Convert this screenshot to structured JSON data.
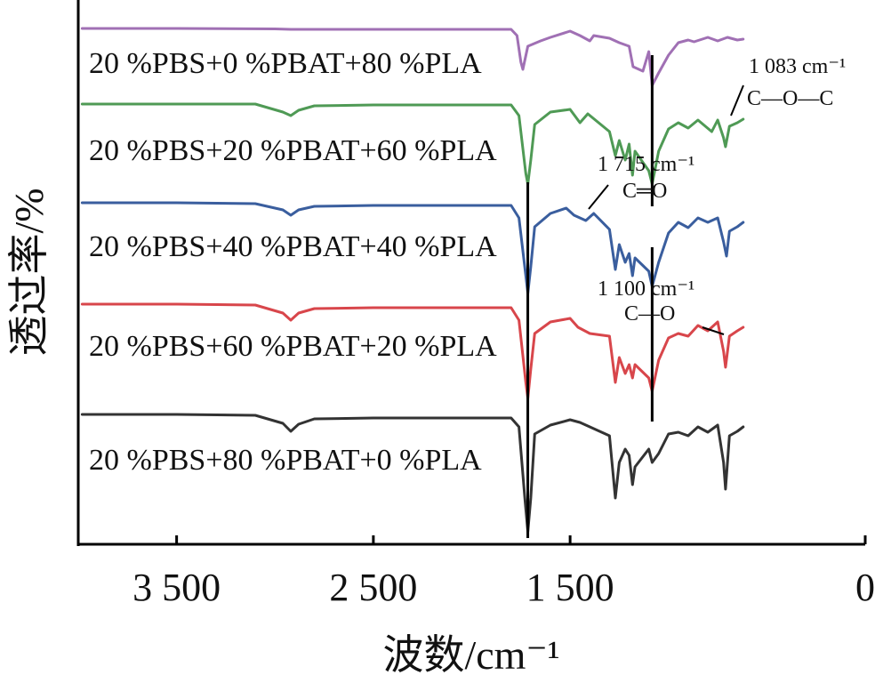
{
  "chart_data": {
    "type": "line",
    "xlabel": "波数/cm⁻¹",
    "ylabel": "透过率/%",
    "x_reversed": true,
    "xlim": [
      4000,
      0
    ],
    "xticks": [
      {
        "value": 3500,
        "label": "3 500"
      },
      {
        "value": 2500,
        "label": "2 500"
      },
      {
        "value": 1500,
        "label": "1 500"
      },
      {
        "value": 0,
        "label": "0"
      }
    ],
    "grid": false,
    "legend": "none",
    "colors": {
      "pla80": "#a070b4",
      "pla60": "#4f9a55",
      "pla40": "#3a5e9e",
      "pla20": "#d8464b",
      "pla0": "#333333",
      "marker": "#000000"
    },
    "series": [
      {
        "name": "20 %PBS+0 %PBAT+80 %PLA",
        "color": "#a070b4",
        "points": [
          [
            3980,
            32
          ],
          [
            3500,
            32
          ],
          [
            3000,
            32.5
          ],
          [
            2920,
            33
          ],
          [
            2500,
            33
          ],
          [
            2000,
            33
          ],
          [
            1800,
            33
          ],
          [
            1770,
            40
          ],
          [
            1750,
            70
          ],
          [
            1740,
            78
          ],
          [
            1715,
            52
          ],
          [
            1650,
            46
          ],
          [
            1600,
            42
          ],
          [
            1500,
            35
          ],
          [
            1450,
            40
          ],
          [
            1400,
            46
          ],
          [
            1380,
            40
          ],
          [
            1300,
            43
          ],
          [
            1250,
            48
          ],
          [
            1200,
            52
          ],
          [
            1180,
            75
          ],
          [
            1130,
            80
          ],
          [
            1100,
            58
          ],
          [
            1083,
            96
          ],
          [
            1050,
            82
          ],
          [
            1000,
            62
          ],
          [
            950,
            48
          ],
          [
            900,
            45
          ],
          [
            870,
            47
          ],
          [
            800,
            42
          ],
          [
            750,
            46
          ],
          [
            700,
            42
          ],
          [
            650,
            45
          ],
          [
            620,
            44
          ]
        ]
      },
      {
        "name": "20 %PBS+20 %PBAT+60 %PLA",
        "color": "#4f9a55",
        "points": [
          [
            3980,
            117
          ],
          [
            3500,
            117
          ],
          [
            3100,
            117
          ],
          [
            2960,
            126
          ],
          [
            2920,
            130
          ],
          [
            2880,
            124
          ],
          [
            2800,
            119
          ],
          [
            2500,
            118
          ],
          [
            2000,
            118
          ],
          [
            1800,
            118
          ],
          [
            1760,
            130
          ],
          [
            1725,
            195
          ],
          [
            1715,
            207
          ],
          [
            1700,
            180
          ],
          [
            1680,
            140
          ],
          [
            1600,
            126
          ],
          [
            1500,
            123
          ],
          [
            1450,
            138
          ],
          [
            1410,
            128
          ],
          [
            1300,
            148
          ],
          [
            1270,
            175
          ],
          [
            1250,
            158
          ],
          [
            1220,
            180
          ],
          [
            1200,
            162
          ],
          [
            1183,
            197
          ],
          [
            1170,
            170
          ],
          [
            1100,
            192
          ],
          [
            1083,
            207
          ],
          [
            1050,
            170
          ],
          [
            1000,
            145
          ],
          [
            950,
            138
          ],
          [
            900,
            144
          ],
          [
            850,
            135
          ],
          [
            780,
            148
          ],
          [
            750,
            135
          ],
          [
            720,
            155
          ],
          [
            710,
            165
          ],
          [
            690,
            142
          ],
          [
            650,
            138
          ],
          [
            620,
            134
          ]
        ]
      },
      {
        "name": "20 %PBS+40 %PBAT+40 %PLA",
        "color": "#3a5e9e",
        "points": [
          [
            3980,
            228
          ],
          [
            3500,
            228
          ],
          [
            3100,
            229
          ],
          [
            2960,
            236
          ],
          [
            2920,
            242
          ],
          [
            2880,
            236
          ],
          [
            2800,
            232
          ],
          [
            2500,
            231
          ],
          [
            2000,
            231
          ],
          [
            1800,
            231
          ],
          [
            1760,
            245
          ],
          [
            1725,
            310
          ],
          [
            1715,
            330
          ],
          [
            1700,
            300
          ],
          [
            1680,
            255
          ],
          [
            1600,
            240
          ],
          [
            1520,
            234
          ],
          [
            1480,
            242
          ],
          [
            1420,
            248
          ],
          [
            1380,
            240
          ],
          [
            1300,
            258
          ],
          [
            1270,
            303
          ],
          [
            1250,
            275
          ],
          [
            1220,
            295
          ],
          [
            1200,
            285
          ],
          [
            1183,
            310
          ],
          [
            1170,
            290
          ],
          [
            1100,
            305
          ],
          [
            1083,
            322
          ],
          [
            1050,
            295
          ],
          [
            1000,
            262
          ],
          [
            950,
            250
          ],
          [
            900,
            256
          ],
          [
            850,
            245
          ],
          [
            800,
            250
          ],
          [
            750,
            245
          ],
          [
            720,
            272
          ],
          [
            705,
            288
          ],
          [
            690,
            260
          ],
          [
            650,
            255
          ],
          [
            620,
            250
          ]
        ]
      },
      {
        "name": "20 %PBS+60 %PBAT+20 %PLA",
        "color": "#d8464b",
        "points": [
          [
            3980,
            342
          ],
          [
            3500,
            342
          ],
          [
            3100,
            343
          ],
          [
            2960,
            352
          ],
          [
            2920,
            360
          ],
          [
            2880,
            352
          ],
          [
            2800,
            347
          ],
          [
            2500,
            346
          ],
          [
            2000,
            346
          ],
          [
            1800,
            346
          ],
          [
            1760,
            360
          ],
          [
            1725,
            430
          ],
          [
            1715,
            448
          ],
          [
            1700,
            415
          ],
          [
            1680,
            375
          ],
          [
            1600,
            362
          ],
          [
            1500,
            358
          ],
          [
            1460,
            368
          ],
          [
            1400,
            375
          ],
          [
            1300,
            378
          ],
          [
            1270,
            430
          ],
          [
            1250,
            402
          ],
          [
            1220,
            420
          ],
          [
            1200,
            410
          ],
          [
            1183,
            425
          ],
          [
            1170,
            410
          ],
          [
            1100,
            425
          ],
          [
            1083,
            440
          ],
          [
            1050,
            405
          ],
          [
            1000,
            380
          ],
          [
            950,
            375
          ],
          [
            900,
            378
          ],
          [
            850,
            366
          ],
          [
            800,
            372
          ],
          [
            750,
            362
          ],
          [
            720,
            395
          ],
          [
            710,
            413
          ],
          [
            690,
            378
          ],
          [
            650,
            372
          ],
          [
            620,
            368
          ]
        ]
      },
      {
        "name": "20 %PBS+80 %PBAT+0 %PLA",
        "color": "#333333",
        "points": [
          [
            3980,
            466
          ],
          [
            3500,
            466
          ],
          [
            3100,
            467
          ],
          [
            2960,
            476
          ],
          [
            2920,
            485
          ],
          [
            2880,
            477
          ],
          [
            2800,
            471
          ],
          [
            2500,
            470
          ],
          [
            2000,
            470
          ],
          [
            1800,
            470
          ],
          [
            1760,
            480
          ],
          [
            1730,
            560
          ],
          [
            1715,
            598
          ],
          [
            1700,
            560
          ],
          [
            1680,
            488
          ],
          [
            1600,
            478
          ],
          [
            1500,
            472
          ],
          [
            1450,
            475
          ],
          [
            1400,
            480
          ],
          [
            1300,
            490
          ],
          [
            1270,
            560
          ],
          [
            1250,
            520
          ],
          [
            1220,
            505
          ],
          [
            1200,
            512
          ],
          [
            1183,
            545
          ],
          [
            1170,
            525
          ],
          [
            1100,
            505
          ],
          [
            1083,
            520
          ],
          [
            1050,
            510
          ],
          [
            1000,
            488
          ],
          [
            950,
            486
          ],
          [
            900,
            490
          ],
          [
            850,
            480
          ],
          [
            800,
            486
          ],
          [
            750,
            478
          ],
          [
            720,
            520
          ],
          [
            710,
            550
          ],
          [
            690,
            490
          ],
          [
            650,
            485
          ],
          [
            620,
            480
          ]
        ]
      }
    ],
    "annotations": [
      {
        "text": "1 083 cm⁻¹",
        "sub": "C—O—C",
        "x": 1083
      },
      {
        "text": "1 715 cm⁻¹",
        "sub": "C═O",
        "x": 1715
      },
      {
        "text": "1 100 cm⁻¹",
        "sub": "C—O",
        "x": 1100
      }
    ]
  }
}
